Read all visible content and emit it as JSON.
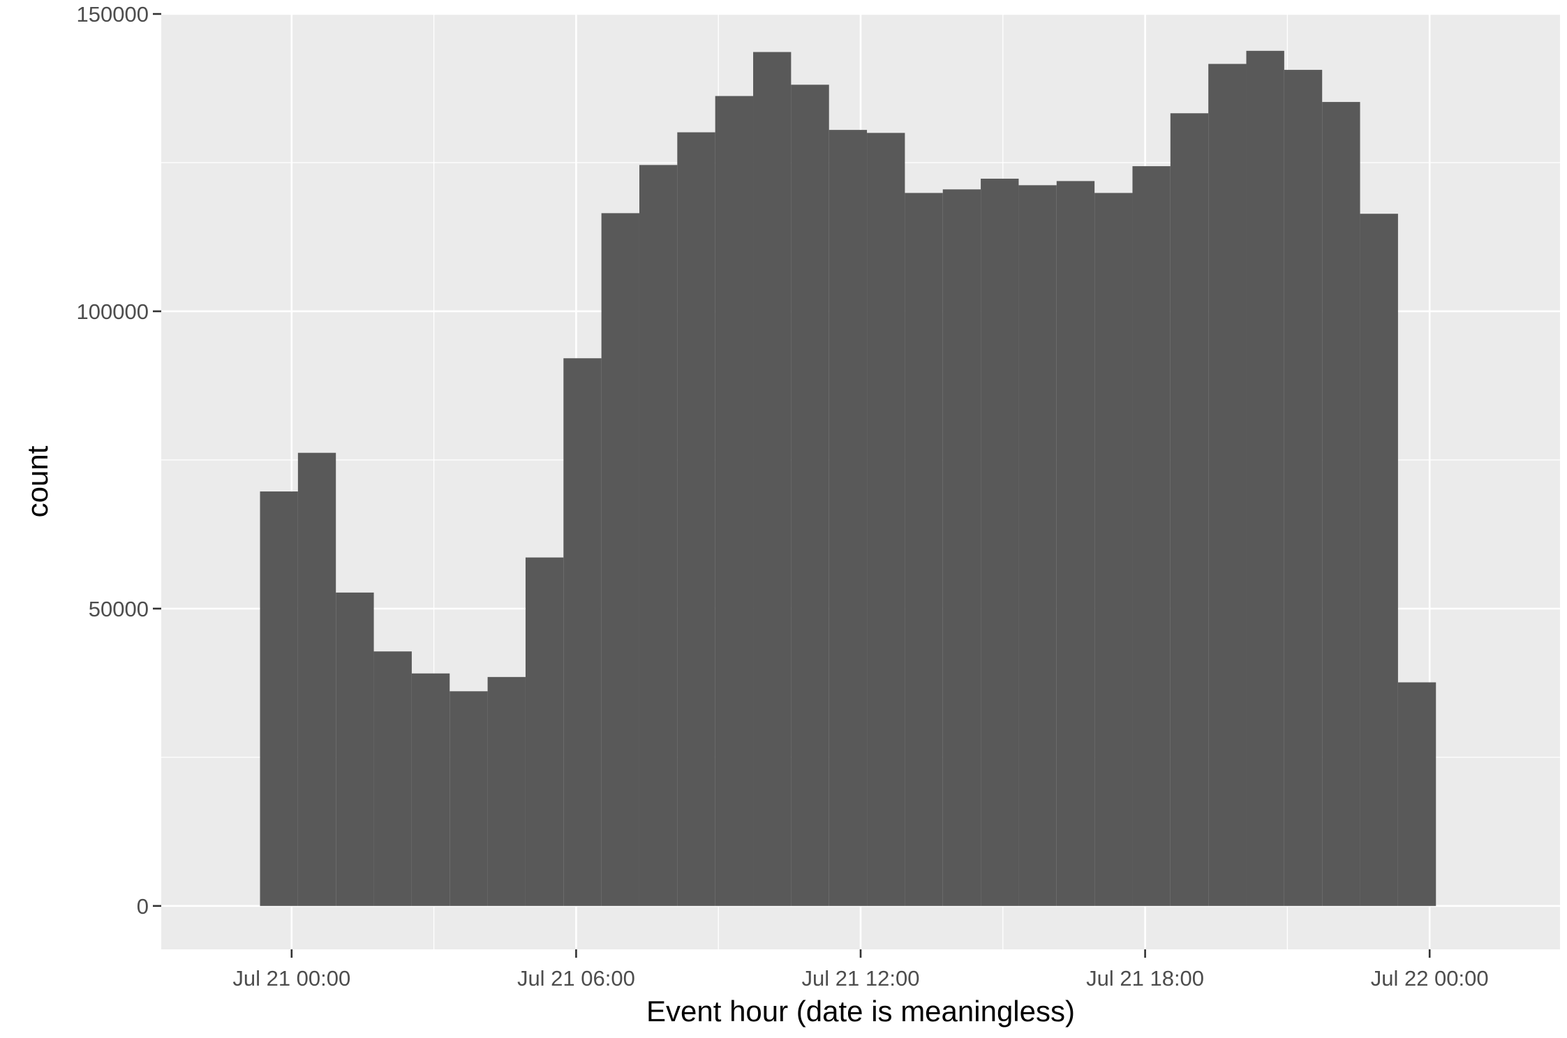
{
  "chart_data": {
    "type": "bar",
    "subtype": "histogram",
    "xlabel": "Event hour (date is meaningless)",
    "ylabel": "count",
    "x_tick_labels": [
      "Jul 21 00:00",
      "Jul 21 06:00",
      "Jul 21 12:00",
      "Jul 21 18:00",
      "Jul 22 00:00"
    ],
    "x_tick_values": [
      "2024-07-21T00:00",
      "2024-07-21T06:00",
      "2024-07-21T12:00",
      "2024-07-21T18:00",
      "2024-07-22T00:00"
    ],
    "y_ticks": [
      0,
      50000,
      100000,
      150000
    ],
    "y_tick_labels": [
      "0",
      "50000",
      "100000",
      "150000"
    ],
    "xlim": [
      "2024-07-20T21:15",
      "2024-07-22T02:45"
    ],
    "ylim": [
      -7300,
      150000
    ],
    "grid": true,
    "legend": "none",
    "bar_color": "#595959",
    "panel_color": "#ebebeb",
    "grid_color": "#ffffff",
    "bins": [
      {
        "start": "2024-07-20T23:20",
        "end": "2024-07-21T00:08",
        "count": 69700
      },
      {
        "start": "2024-07-21T00:08",
        "end": "2024-07-21T00:56",
        "count": 76200
      },
      {
        "start": "2024-07-21T00:56",
        "end": "2024-07-21T01:44",
        "count": 52700
      },
      {
        "start": "2024-07-21T01:44",
        "end": "2024-07-21T02:32",
        "count": 42800
      },
      {
        "start": "2024-07-21T02:32",
        "end": "2024-07-21T03:20",
        "count": 39100
      },
      {
        "start": "2024-07-21T03:20",
        "end": "2024-07-21T04:08",
        "count": 36100
      },
      {
        "start": "2024-07-21T04:08",
        "end": "2024-07-21T04:56",
        "count": 38500
      },
      {
        "start": "2024-07-21T04:56",
        "end": "2024-07-21T05:44",
        "count": 58600
      },
      {
        "start": "2024-07-21T05:44",
        "end": "2024-07-21T06:32",
        "count": 92100
      },
      {
        "start": "2024-07-21T06:32",
        "end": "2024-07-21T07:20",
        "count": 116500
      },
      {
        "start": "2024-07-21T07:20",
        "end": "2024-07-21T08:08",
        "count": 124600
      },
      {
        "start": "2024-07-21T08:08",
        "end": "2024-07-21T08:56",
        "count": 130100
      },
      {
        "start": "2024-07-21T08:56",
        "end": "2024-07-21T09:44",
        "count": 136200
      },
      {
        "start": "2024-07-21T09:44",
        "end": "2024-07-21T10:32",
        "count": 143600
      },
      {
        "start": "2024-07-21T10:32",
        "end": "2024-07-21T11:20",
        "count": 138100
      },
      {
        "start": "2024-07-21T11:20",
        "end": "2024-07-21T12:08",
        "count": 130500
      },
      {
        "start": "2024-07-21T12:08",
        "end": "2024-07-21T12:56",
        "count": 130000
      },
      {
        "start": "2024-07-21T12:56",
        "end": "2024-07-21T13:44",
        "count": 119900
      },
      {
        "start": "2024-07-21T13:44",
        "end": "2024-07-21T14:32",
        "count": 120500
      },
      {
        "start": "2024-07-21T14:32",
        "end": "2024-07-21T15:20",
        "count": 122300
      },
      {
        "start": "2024-07-21T15:20",
        "end": "2024-07-21T16:08",
        "count": 121200
      },
      {
        "start": "2024-07-21T16:08",
        "end": "2024-07-21T16:56",
        "count": 121900
      },
      {
        "start": "2024-07-21T16:56",
        "end": "2024-07-21T17:44",
        "count": 119900
      },
      {
        "start": "2024-07-21T17:44",
        "end": "2024-07-21T18:32",
        "count": 124400
      },
      {
        "start": "2024-07-21T18:32",
        "end": "2024-07-21T19:20",
        "count": 133300
      },
      {
        "start": "2024-07-21T19:20",
        "end": "2024-07-21T20:08",
        "count": 141600
      },
      {
        "start": "2024-07-21T20:08",
        "end": "2024-07-21T20:56",
        "count": 143800
      },
      {
        "start": "2024-07-21T20:56",
        "end": "2024-07-21T21:44",
        "count": 140600
      },
      {
        "start": "2024-07-21T21:44",
        "end": "2024-07-21T22:32",
        "count": 135200
      },
      {
        "start": "2024-07-21T22:32",
        "end": "2024-07-21T23:20",
        "count": 116400
      },
      {
        "start": "2024-07-21T23:20",
        "end": "2024-07-22T00:08",
        "count": 37600
      }
    ]
  }
}
